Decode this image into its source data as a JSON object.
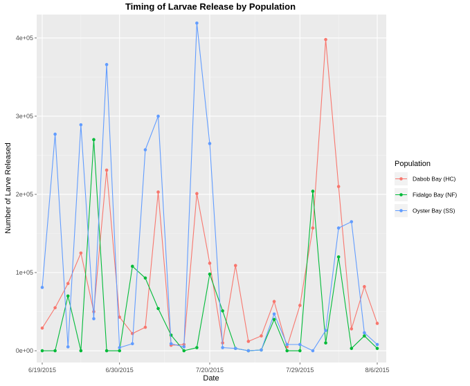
{
  "chart_data": {
    "type": "line",
    "title": "Timing of Larvae Release by Population",
    "xlabel": "Date",
    "ylabel": "Number of Larve Released",
    "x_ticks": [
      "6/19/2015",
      "6/30/2015",
      "7/20/2015",
      "7/29/2015",
      "8/6/2015"
    ],
    "y_ticks": [
      "0e+00",
      "1e+05",
      "2e+05",
      "3e+05",
      "4e+05"
    ],
    "ylim": [
      -15000,
      430000
    ],
    "legend": {
      "title": "Population",
      "placement": "right"
    },
    "grid": true,
    "series": [
      {
        "name": "Dabob Bay (HC)",
        "color": "#F8766D",
        "values": [
          [
            0,
            29000
          ],
          [
            1,
            55000
          ],
          [
            2,
            86000
          ],
          [
            3,
            125000
          ],
          [
            4,
            50000
          ],
          [
            5,
            231000
          ],
          [
            6,
            43000
          ],
          [
            7,
            22000
          ],
          [
            8,
            30000
          ],
          [
            9,
            203000
          ],
          [
            10,
            7000
          ],
          [
            11,
            8000
          ],
          [
            12,
            201000
          ],
          [
            13,
            112000
          ],
          [
            14,
            10000
          ],
          [
            15,
            109000
          ],
          [
            16,
            12000
          ],
          [
            17,
            19000
          ],
          [
            18,
            63000
          ],
          [
            19,
            5000
          ],
          [
            20,
            58000
          ],
          [
            21,
            157000
          ],
          [
            22,
            398000
          ],
          [
            23,
            210000
          ],
          [
            24,
            28000
          ],
          [
            25,
            82000
          ],
          [
            26,
            35000
          ]
        ]
      },
      {
        "name": "Fidalgo Bay (NF)",
        "color": "#00BA38",
        "values": [
          [
            0,
            0
          ],
          [
            1,
            0
          ],
          [
            2,
            70000
          ],
          [
            3,
            0
          ],
          [
            4,
            270000
          ],
          [
            5,
            0
          ],
          [
            6,
            0
          ],
          [
            7,
            108000
          ],
          [
            8,
            93000
          ],
          [
            9,
            54000
          ],
          [
            10,
            20000
          ],
          [
            11,
            0
          ],
          [
            12,
            4000
          ],
          [
            13,
            98000
          ],
          [
            14,
            51000
          ],
          [
            15,
            3000
          ],
          [
            16,
            0
          ],
          [
            17,
            1000
          ],
          [
            18,
            40000
          ],
          [
            19,
            0
          ],
          [
            20,
            0
          ],
          [
            21,
            204000
          ],
          [
            22,
            10000
          ],
          [
            23,
            120000
          ],
          [
            24,
            3000
          ],
          [
            25,
            19000
          ],
          [
            26,
            3000
          ]
        ]
      },
      {
        "name": "Oyster Bay (SS)",
        "color": "#619CFF",
        "values": [
          [
            0,
            81000
          ],
          [
            1,
            277000
          ],
          [
            2,
            5000
          ],
          [
            3,
            289000
          ],
          [
            4,
            41000
          ],
          [
            5,
            366000
          ],
          [
            6,
            4000
          ],
          [
            7,
            9000
          ],
          [
            8,
            257000
          ],
          [
            9,
            300000
          ],
          [
            10,
            9000
          ],
          [
            11,
            5000
          ],
          [
            12,
            419000
          ],
          [
            13,
            265000
          ],
          [
            14,
            4000
          ],
          [
            15,
            3000
          ],
          [
            16,
            0
          ],
          [
            17,
            1000
          ],
          [
            18,
            47000
          ],
          [
            19,
            8000
          ],
          [
            20,
            8000
          ],
          [
            21,
            0
          ],
          [
            22,
            26000
          ],
          [
            23,
            157000
          ],
          [
            24,
            165000
          ],
          [
            25,
            23000
          ],
          [
            26,
            8000
          ]
        ]
      }
    ]
  }
}
